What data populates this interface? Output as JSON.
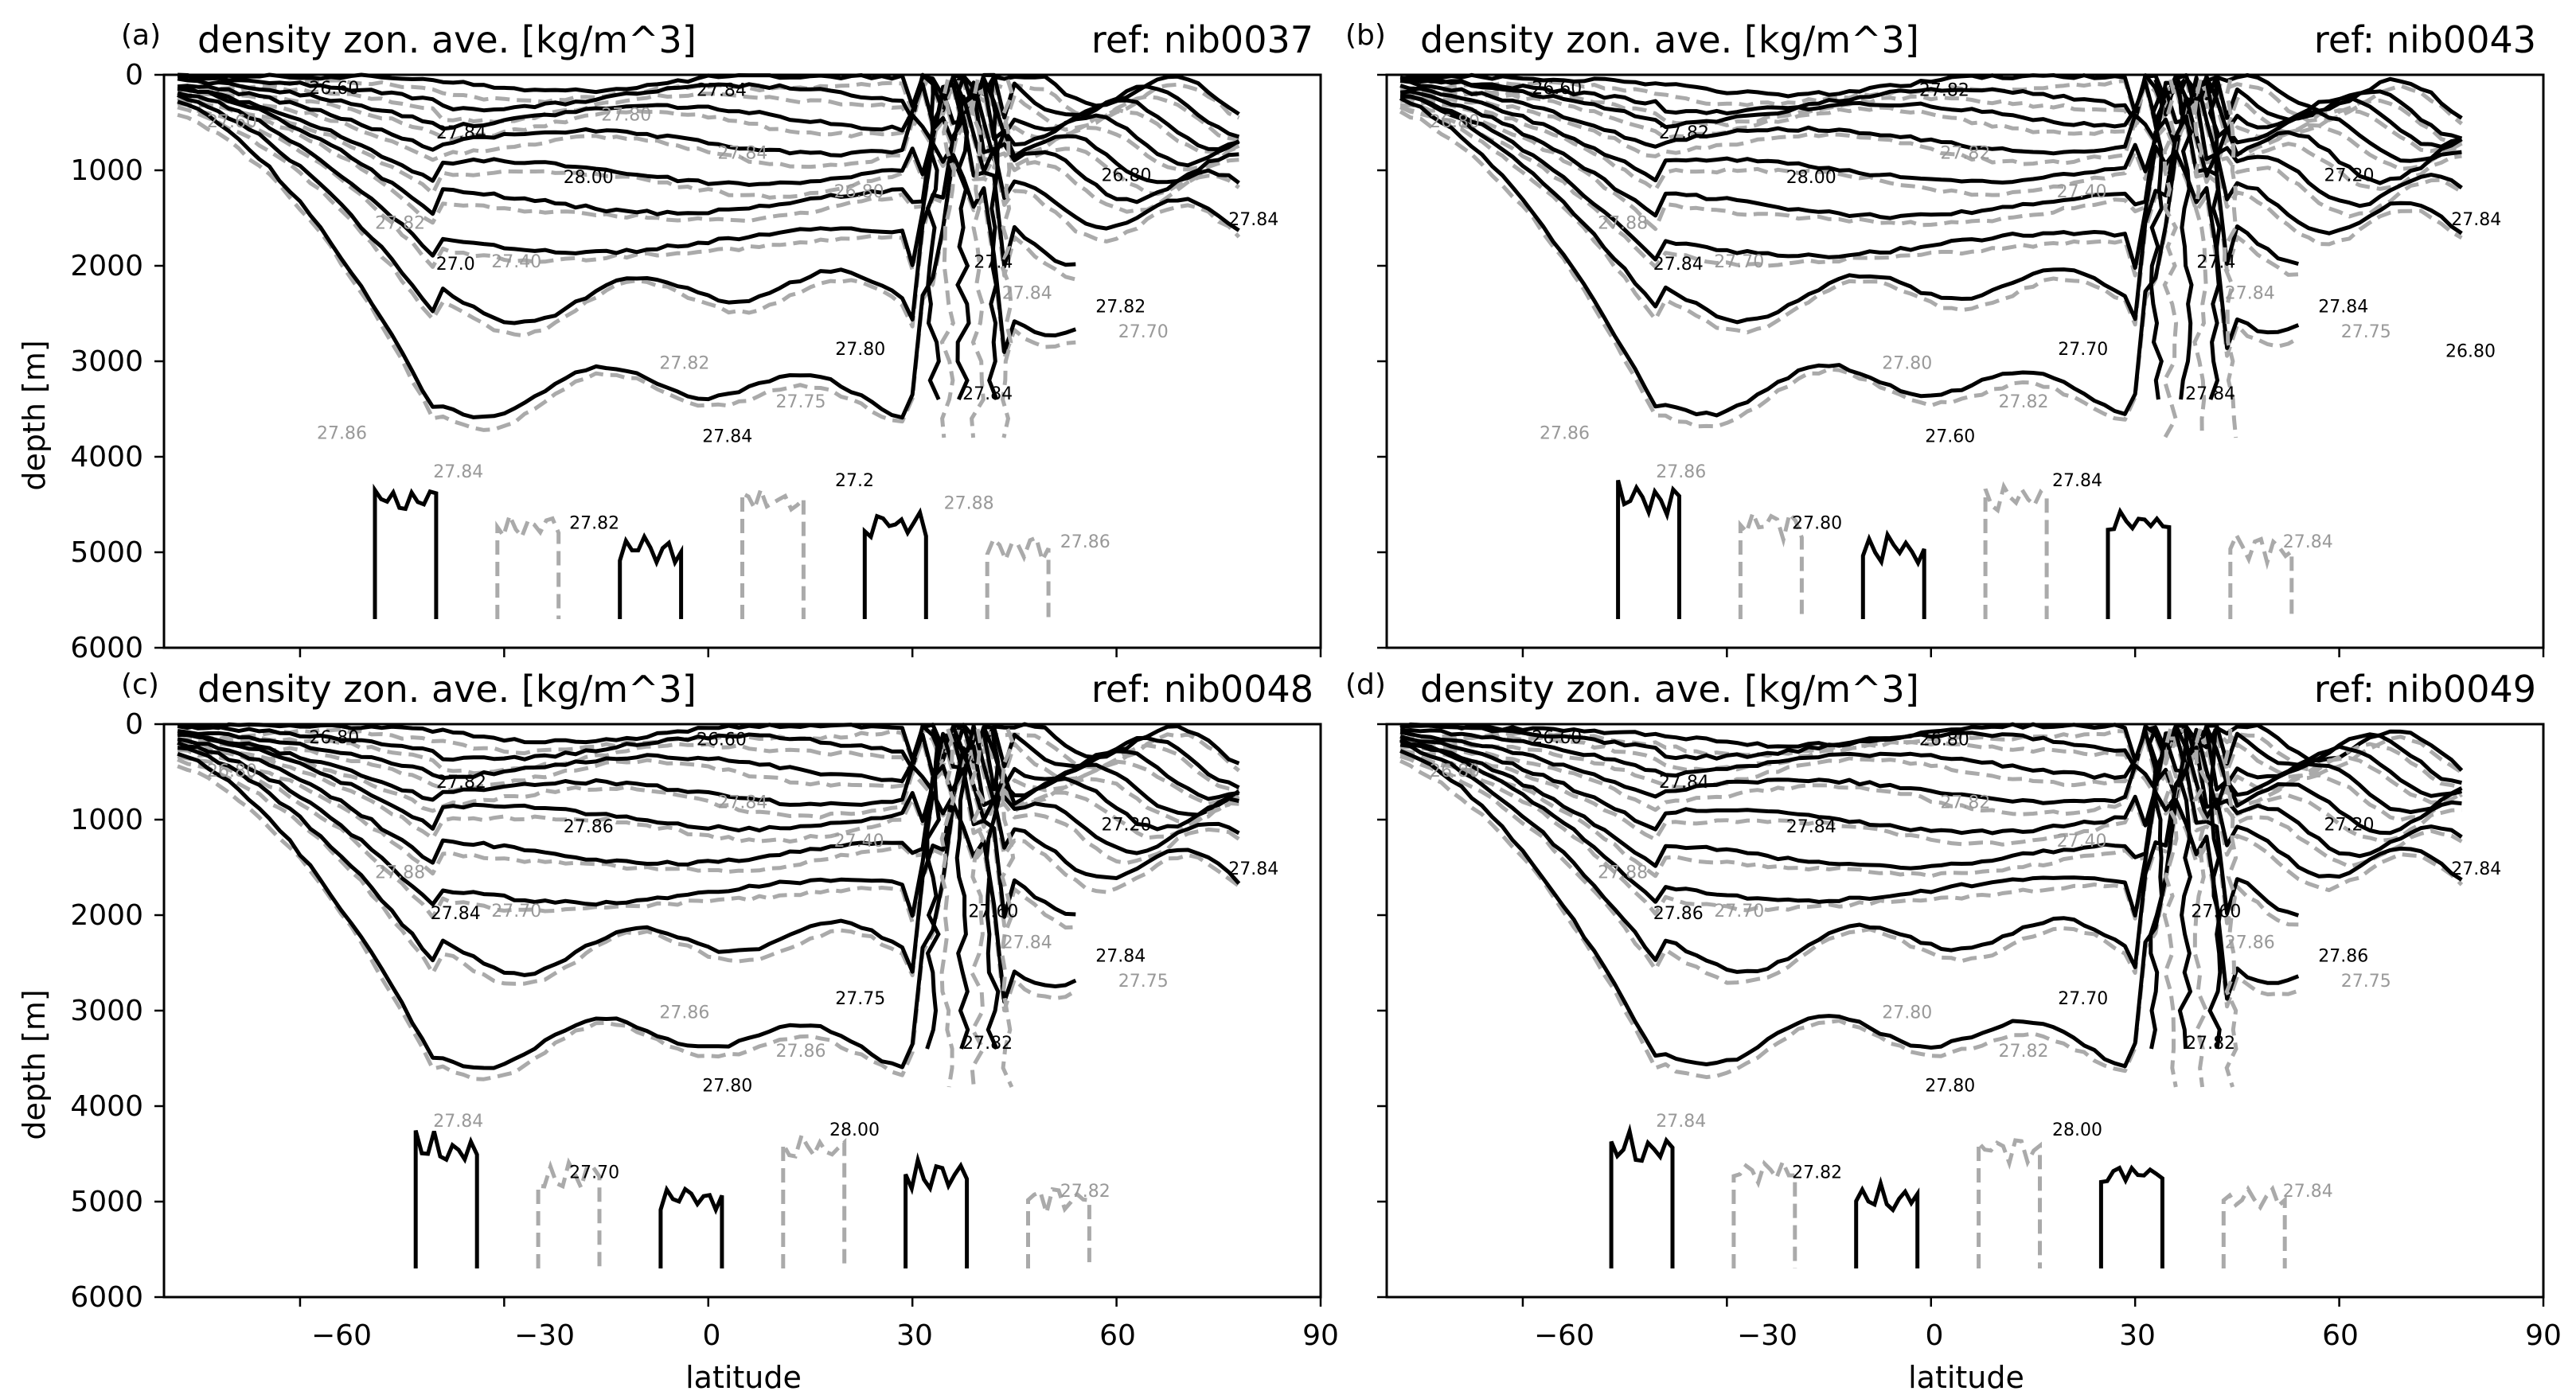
{
  "chart_data": [
    {
      "type": "contour",
      "panel_label": "(a)",
      "title": "density zon. ave. [kg/m^3]",
      "ref": "ref: nib0037",
      "xlabel": "",
      "ylabel": "depth [m]",
      "xlim": [
        -80,
        90
      ],
      "ylim": [
        6000,
        0
      ],
      "xticks": [],
      "yticks": [
        "0",
        "1000",
        "2000",
        "3000",
        "4000",
        "5000",
        "6000"
      ],
      "line_styles": {
        "model": "solid black",
        "reference": "dashed grey"
      },
      "contour_labels_black": [
        "26.60",
        "26.80",
        "27.4",
        "27.80",
        "27.84",
        "27.82",
        "27.84",
        "27.84",
        "27.82",
        "27.84",
        "27.2",
        "27.84",
        "28.00",
        "27.0"
      ],
      "contour_labels_grey": [
        "27.60",
        "26.80",
        "27.40",
        "27.70",
        "27.75",
        "27.84",
        "27.86",
        "27.84",
        "27.82",
        "27.84",
        "27.82",
        "27.86",
        "27.88",
        "27.80"
      ]
    },
    {
      "type": "contour",
      "panel_label": "(b)",
      "title": "density zon. ave. [kg/m^3]",
      "ref": "ref: nib0043",
      "xlabel": "",
      "ylabel": "",
      "xlim": [
        -80,
        90
      ],
      "ylim": [
        6000,
        0
      ],
      "xticks": [],
      "yticks": [],
      "line_styles": {
        "model": "solid black",
        "reference": "dashed grey"
      },
      "contour_labels_black": [
        "26.60",
        "27.20",
        "27.4",
        "27.70",
        "27.60",
        "27.80",
        "27.82",
        "27.84",
        "27.84",
        "27.84",
        "27.84",
        "27.82",
        "28.00",
        "27.84",
        "26.80"
      ],
      "contour_labels_grey": [
        "26.80",
        "27.40",
        "27.70",
        "27.75",
        "27.82",
        "27.86",
        "27.84",
        "27.82",
        "27.88",
        "27.84",
        "27.80",
        "27.86"
      ]
    },
    {
      "type": "contour",
      "panel_label": "(c)",
      "title": "density zon. ave. [kg/m^3]",
      "ref": "ref: nib0048",
      "xlabel": "latitude",
      "ylabel": "depth [m]",
      "xlim": [
        -80,
        90
      ],
      "ylim": [
        6000,
        0
      ],
      "xticks": [
        "−60",
        "−30",
        "0",
        "30",
        "60",
        "90"
      ],
      "yticks": [
        "0",
        "1000",
        "2000",
        "3000",
        "4000",
        "5000",
        "6000"
      ],
      "line_styles": {
        "model": "solid black",
        "reference": "dashed grey"
      },
      "contour_labels_black": [
        "26.80",
        "27.20",
        "27.60",
        "27.75",
        "27.80",
        "27.70",
        "27.82",
        "27.84",
        "27.84",
        "27.82",
        "28.00",
        "26.60",
        "27.86",
        "27.84"
      ],
      "contour_labels_grey": [
        "26.80",
        "27.40",
        "27.70",
        "27.75",
        "27.86",
        "27.84",
        "27.82",
        "27.84",
        "27.88",
        "27.84",
        "27.86"
      ]
    },
    {
      "type": "contour",
      "panel_label": "(d)",
      "title": "density zon. ave. [kg/m^3]",
      "ref": "ref: nib0049",
      "xlabel": "latitude",
      "ylabel": "",
      "xlim": [
        -80,
        90
      ],
      "ylim": [
        6000,
        0
      ],
      "xticks": [
        "−60",
        "−30",
        "0",
        "30",
        "60",
        "90"
      ],
      "yticks": [],
      "line_styles": {
        "model": "solid black",
        "reference": "dashed grey"
      },
      "contour_labels_black": [
        "26.60",
        "27.20",
        "27.60",
        "27.70",
        "27.80",
        "27.82",
        "27.84",
        "27.84",
        "27.86",
        "27.82",
        "28.00",
        "26.80",
        "27.84",
        "27.86"
      ],
      "contour_labels_grey": [
        "26.80",
        "27.40",
        "27.70",
        "27.75",
        "27.82",
        "27.84",
        "27.84",
        "27.82",
        "27.88",
        "27.86",
        "27.80"
      ]
    }
  ]
}
